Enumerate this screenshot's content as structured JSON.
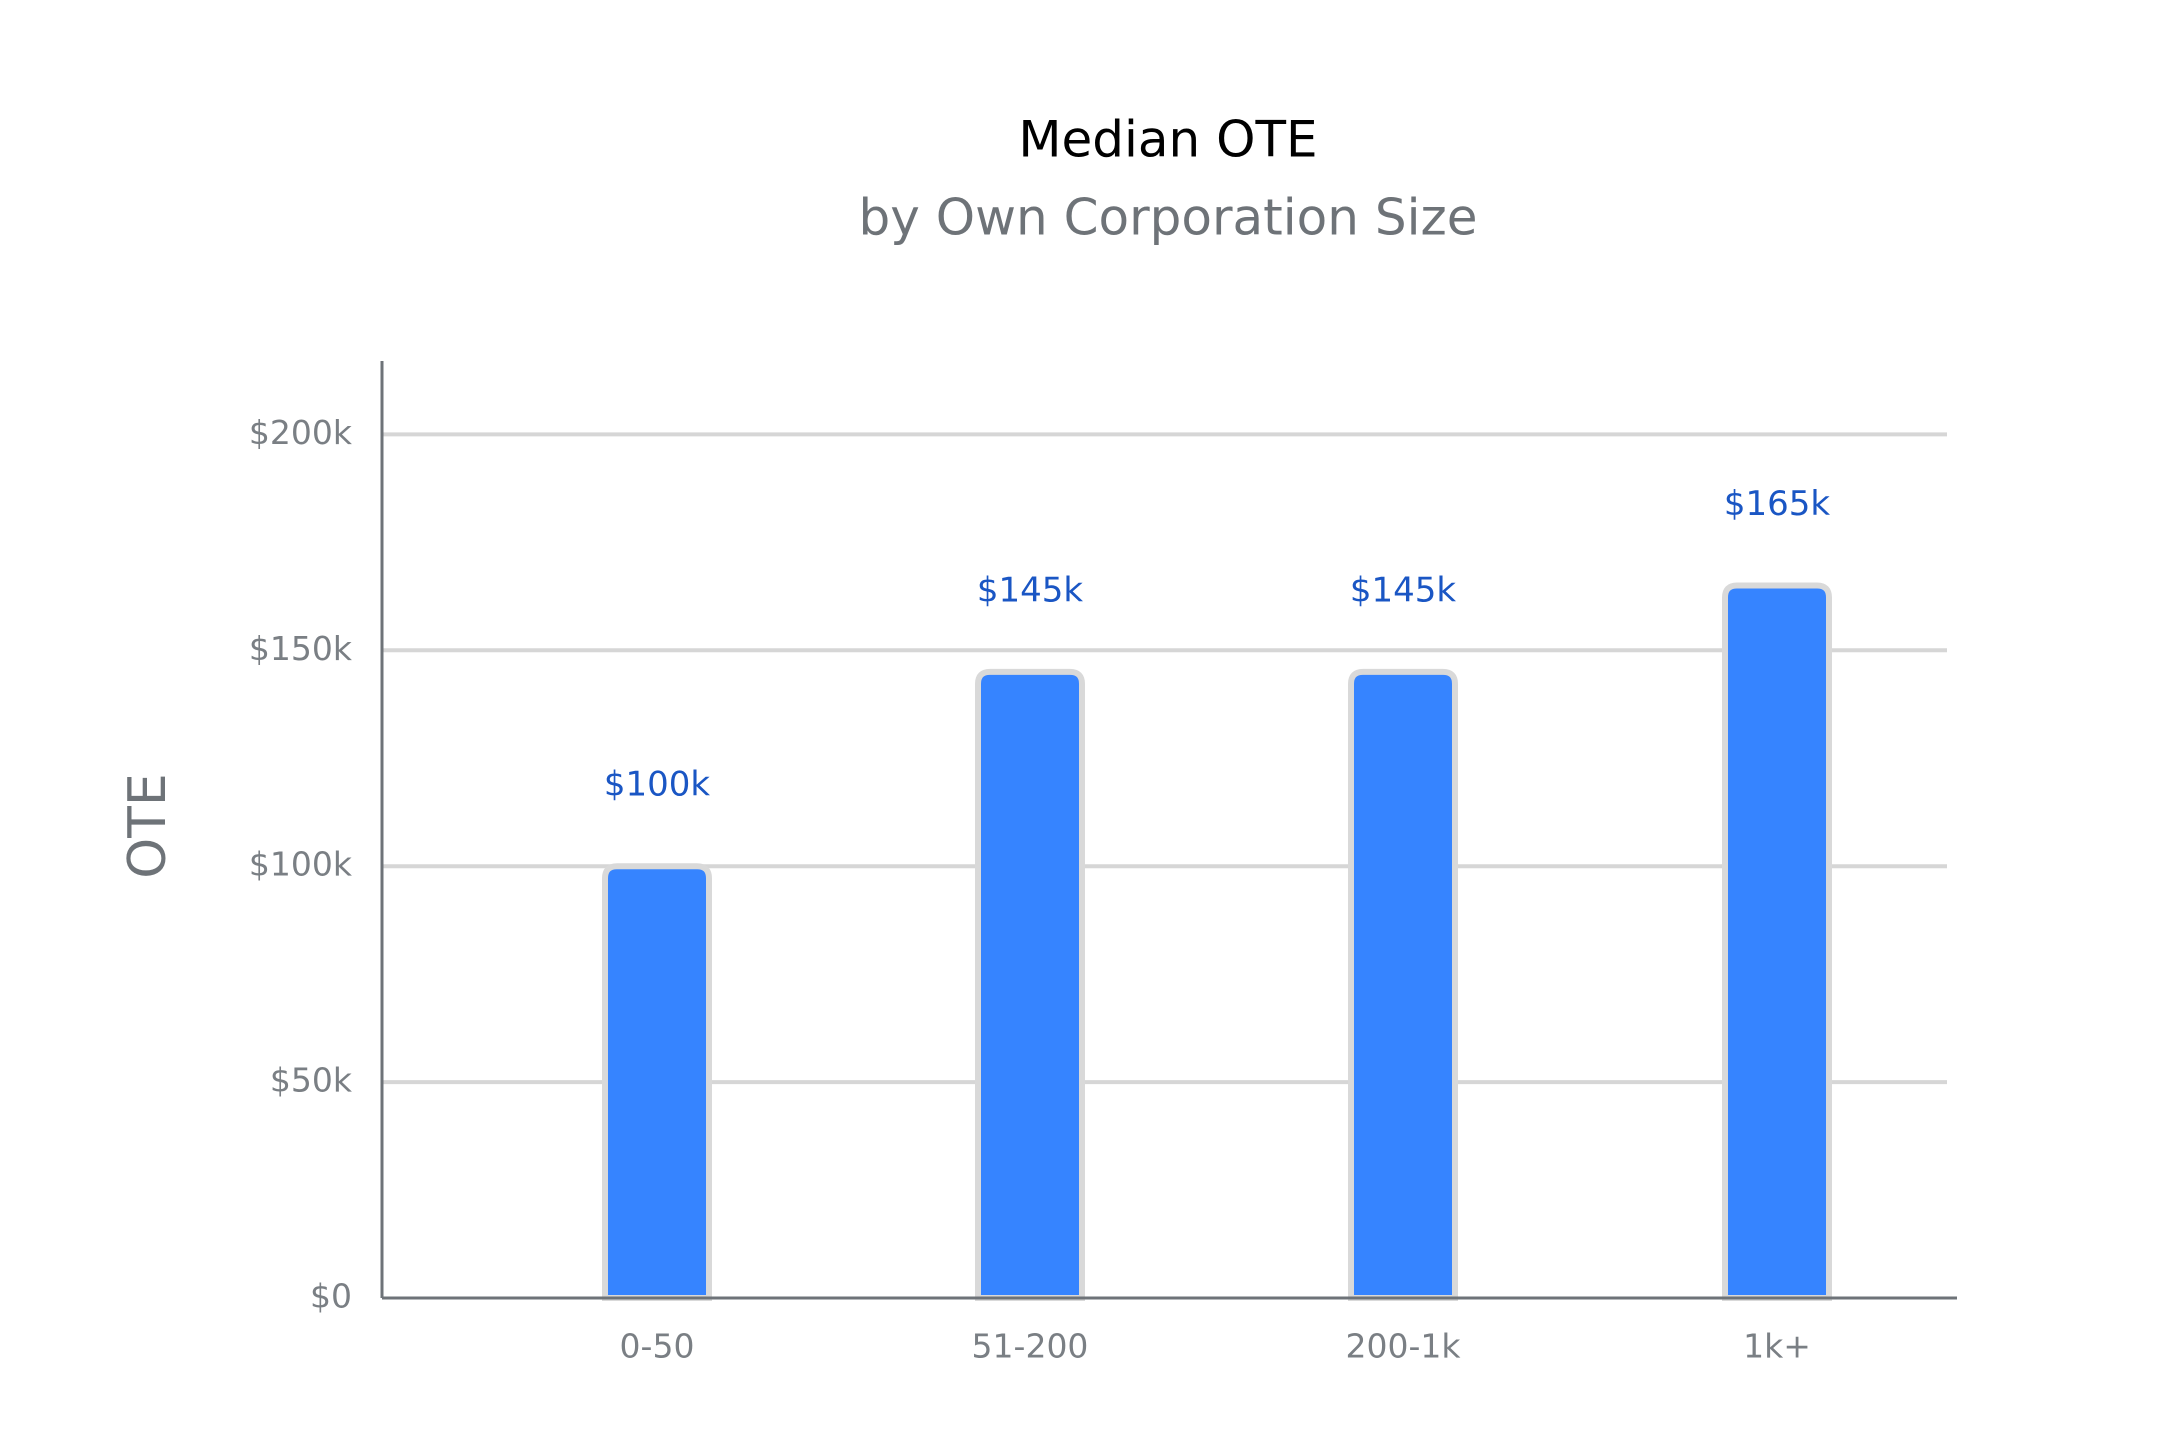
{
  "chart_data": {
    "type": "bar",
    "title": "Median OTE",
    "subtitle": "by Own Corporation Size",
    "y_label": "OTE",
    "categories": [
      "0-50",
      "51-200",
      "200-1k",
      "1k+"
    ],
    "values": [
      100000,
      145000,
      145000,
      165000
    ],
    "value_labels": [
      "$100k",
      "$145k",
      "$145k",
      "$165k"
    ],
    "color": "#3684ff",
    "ylim": [
      0,
      217000
    ],
    "yticks": [
      {
        "value": 0,
        "label": "$0"
      },
      {
        "value": 50000,
        "label": "$50k"
      },
      {
        "value": 100000,
        "label": "$100k"
      },
      {
        "value": 150000,
        "label": "$150k"
      },
      {
        "value": 200000,
        "label": "$200k"
      }
    ],
    "grid": true
  }
}
